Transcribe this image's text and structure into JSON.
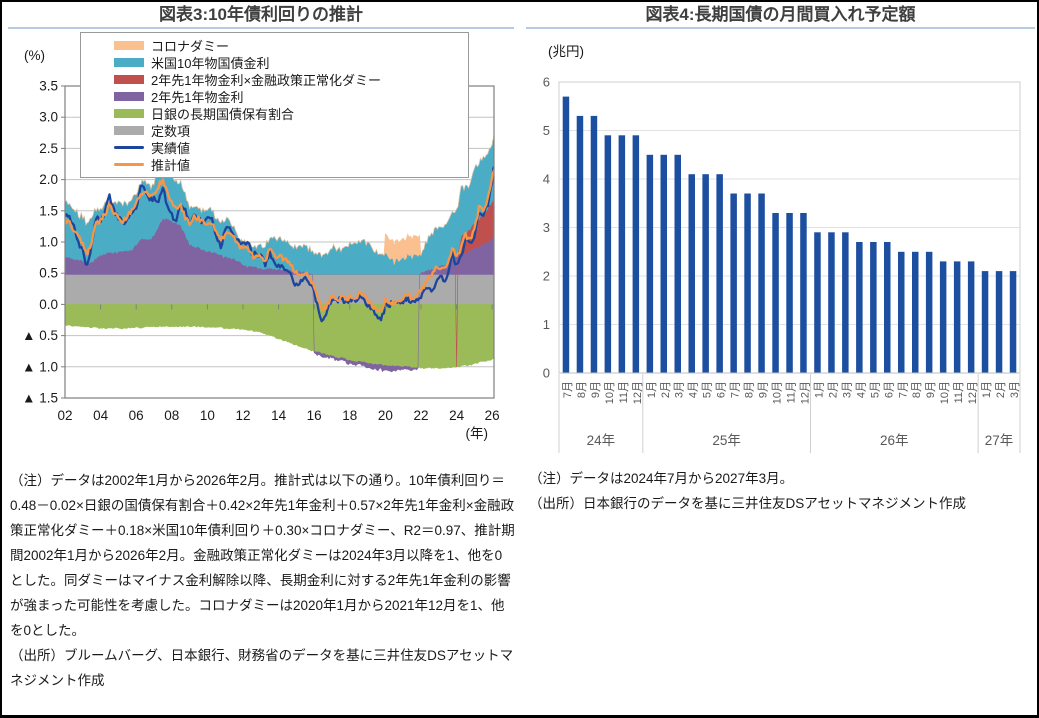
{
  "left": {
    "note": "（注）データは2002年1月から2026年2月。推計式は以下の通り。10年債利回り＝0.48－0.02×日銀の国債保有割合＋0.42×2年先1年金利＋0.57×2年先1年金利×金融政策正常化ダミー＋0.18×米国10年債利回り＋0.30×コロナダミー、R2＝0.97、推計期間2002年1月から2026年2月。金融政策正常化ダミーは2024年3月以降を1、他を0とした。同ダミーはマイナス金利解除以降、長期金利に対する2年先1年金利の影響が強まった可能性を考慮した。コロナダミーは2020年1月から2021年12月を1、他を0とした。",
    "source": "（出所）ブルームバーグ、日本銀行、財務省のデータを基に三井住友DSアセットマネジメント作成"
  },
  "right": {
    "note": "（注）データは2024年7月から2027年3月。",
    "source": "（出所）日本銀行のデータを基に三井住友DSアセットマネジメント作成"
  },
  "chart_data": [
    {
      "type": "area",
      "title": "図表3:10年債利回りの推計",
      "ylabel": "(%)",
      "xlabel": "(年)",
      "ylim": [
        -1.5,
        3.5
      ],
      "ytick_step": 0.5,
      "negative_tick_prefix": "▲ ",
      "x_start": 2002,
      "x_step": 0.25,
      "x_end": 2026.1,
      "xtick_labels": [
        "02",
        "04",
        "06",
        "08",
        "10",
        "12",
        "14",
        "16",
        "18",
        "20",
        "22",
        "24",
        "26"
      ],
      "grid": true,
      "legend_position": "top",
      "stack_order": [
        "constant",
        "boj_holding",
        "fwd_rate",
        "fwd_rate_norm",
        "us10y",
        "corona"
      ],
      "legend_order": [
        "corona",
        "us10y",
        "fwd_rate_norm",
        "fwd_rate",
        "boj_holding",
        "constant",
        "actual",
        "estimate"
      ],
      "series": {
        "constant": {
          "label": "定数項",
          "color": "#ABABAB",
          "value": 0.48
        },
        "boj_holding": {
          "label": "日銀の長期国債保有割合",
          "color": "#9BBB59",
          "values": [
            -0.33,
            -0.34,
            -0.34,
            -0.35,
            -0.36,
            -0.36,
            -0.37,
            -0.37,
            -0.38,
            -0.38,
            -0.38,
            -0.38,
            -0.38,
            -0.38,
            -0.38,
            -0.37,
            -0.37,
            -0.37,
            -0.36,
            -0.36,
            -0.36,
            -0.35,
            -0.35,
            -0.35,
            -0.35,
            -0.35,
            -0.35,
            -0.35,
            -0.35,
            -0.35,
            -0.35,
            -0.36,
            -0.36,
            -0.36,
            -0.37,
            -0.37,
            -0.38,
            -0.38,
            -0.39,
            -0.39,
            -0.4,
            -0.41,
            -0.42,
            -0.43,
            -0.45,
            -0.47,
            -0.5,
            -0.52,
            -0.55,
            -0.58,
            -0.6,
            -0.63,
            -0.65,
            -0.68,
            -0.7,
            -0.73,
            -0.75,
            -0.77,
            -0.79,
            -0.81,
            -0.83,
            -0.85,
            -0.86,
            -0.88,
            -0.9,
            -0.91,
            -0.92,
            -0.93,
            -0.95,
            -0.95,
            -0.96,
            -0.97,
            -0.98,
            -0.98,
            -0.99,
            -0.99,
            -1.0,
            -1.0,
            -1.01,
            -1.01,
            -1.02,
            -1.02,
            -1.02,
            -1.02,
            -1.02,
            -1.02,
            -1.01,
            -1.01,
            -1.0,
            -0.99,
            -0.98,
            -0.97,
            -0.95,
            -0.93,
            -0.91,
            -0.9,
            -0.88,
            -0.87
          ]
        },
        "fwd_rate": {
          "label": "2年先1年物金利",
          "color": "#8064A2",
          "values": [
            0.27,
            0.26,
            0.25,
            0.24,
            0.22,
            0.18,
            0.2,
            0.26,
            0.3,
            0.33,
            0.36,
            0.35,
            0.36,
            0.37,
            0.38,
            0.4,
            0.48,
            0.55,
            0.58,
            0.56,
            0.62,
            0.78,
            0.9,
            0.88,
            0.86,
            0.82,
            0.78,
            0.65,
            0.48,
            0.45,
            0.43,
            0.4,
            0.37,
            0.36,
            0.33,
            0.3,
            0.28,
            0.27,
            0.25,
            0.22,
            0.15,
            0.13,
            0.12,
            0.11,
            0.1,
            0.09,
            0.09,
            0.08,
            0.08,
            0.07,
            0.07,
            0.06,
            0.06,
            0.05,
            0.04,
            0.02,
            -0.02,
            -0.04,
            -0.05,
            -0.04,
            -0.04,
            -0.04,
            -0.04,
            -0.04,
            -0.05,
            -0.05,
            -0.05,
            -0.06,
            -0.06,
            -0.07,
            -0.08,
            -0.08,
            -0.08,
            -0.07,
            -0.07,
            -0.06,
            -0.05,
            -0.04,
            -0.04,
            -0.03,
            0.04,
            0.06,
            0.08,
            0.1,
            0.14,
            0.16,
            0.18,
            0.24,
            0.3,
            0.33,
            0.35,
            0.37,
            0.42,
            0.45,
            0.48,
            0.52,
            0.58,
            0.6
          ]
        },
        "fwd_rate_norm": {
          "label": "2年先1年物金利×金融政策正常化ダミー",
          "color": "#C0504D",
          "from": 2024.25,
          "values_from": [
            0.28,
            0.32,
            0.35,
            0.4,
            0.44,
            0.48,
            0.54,
            0.6,
            0.62
          ]
        },
        "us10y": {
          "label": "米国10年物国債金利",
          "color": "#4BACC6",
          "values": [
            0.87,
            0.88,
            0.8,
            0.72,
            0.7,
            0.62,
            0.72,
            0.78,
            0.75,
            0.8,
            0.82,
            0.78,
            0.76,
            0.74,
            0.76,
            0.8,
            0.82,
            0.9,
            0.9,
            0.84,
            0.85,
            0.85,
            0.88,
            0.8,
            0.7,
            0.68,
            0.7,
            0.65,
            0.55,
            0.6,
            0.64,
            0.62,
            0.66,
            0.68,
            0.55,
            0.48,
            0.6,
            0.62,
            0.52,
            0.38,
            0.36,
            0.38,
            0.3,
            0.31,
            0.35,
            0.37,
            0.46,
            0.48,
            0.52,
            0.48,
            0.45,
            0.42,
            0.36,
            0.38,
            0.4,
            0.38,
            0.36,
            0.32,
            0.28,
            0.32,
            0.44,
            0.42,
            0.4,
            0.42,
            0.48,
            0.52,
            0.52,
            0.55,
            0.48,
            0.45,
            0.36,
            0.32,
            0.3,
            0.25,
            0.2,
            0.22,
            0.25,
            0.3,
            0.28,
            0.3,
            0.32,
            0.44,
            0.52,
            0.64,
            0.62,
            0.6,
            0.68,
            0.8,
            0.72,
            0.76,
            0.72,
            0.7,
            0.85,
            0.88,
            0.9,
            0.92,
            0.95,
            1.05
          ]
        },
        "corona": {
          "label": "コロナダミー",
          "color": "#FAC090",
          "amount": 0.3,
          "from": 2020.0,
          "to": 2021.99,
          "step": true
        }
      },
      "lines": {
        "actual": {
          "label": "実績値",
          "color": "#1E459E",
          "width": 2.3,
          "values": [
            1.45,
            1.4,
            1.25,
            1.0,
            0.85,
            0.6,
            0.95,
            1.4,
            1.3,
            1.5,
            1.75,
            1.5,
            1.4,
            1.3,
            1.35,
            1.5,
            1.55,
            1.9,
            1.85,
            1.7,
            1.7,
            1.65,
            1.85,
            1.6,
            1.45,
            1.3,
            1.6,
            1.5,
            1.25,
            1.45,
            1.35,
            1.3,
            1.35,
            1.35,
            1.1,
            0.9,
            1.2,
            1.25,
            1.1,
            1.0,
            0.95,
            1.0,
            0.8,
            0.8,
            0.8,
            0.6,
            0.85,
            0.65,
            0.65,
            0.6,
            0.55,
            0.45,
            0.3,
            0.35,
            0.45,
            0.3,
            0.2,
            -0.1,
            -0.28,
            -0.05,
            0.05,
            0.05,
            0.08,
            0.05,
            0.08,
            0.05,
            0.1,
            0.12,
            0.0,
            -0.05,
            -0.15,
            -0.25,
            -0.05,
            0.0,
            0.03,
            0.03,
            0.05,
            0.1,
            0.05,
            0.08,
            0.15,
            0.22,
            0.23,
            0.25,
            0.45,
            0.4,
            0.45,
            0.85,
            0.6,
            0.75,
            1.05,
            0.95,
            1.1,
            1.5,
            1.45,
            1.6,
            2.0,
            2.2
          ]
        },
        "estimate": {
          "label": "推計値",
          "color": "#F79646",
          "width": 2.3,
          "values": [
            1.35,
            1.3,
            1.2,
            1.1,
            0.95,
            0.8,
            1.0,
            1.3,
            1.35,
            1.45,
            1.6,
            1.45,
            1.38,
            1.35,
            1.4,
            1.52,
            1.6,
            1.8,
            1.8,
            1.72,
            1.75,
            1.9,
            2.0,
            1.8,
            1.65,
            1.55,
            1.6,
            1.4,
            1.3,
            1.4,
            1.38,
            1.32,
            1.3,
            1.32,
            1.15,
            1.0,
            1.15,
            1.18,
            1.05,
            0.95,
            0.9,
            0.92,
            0.78,
            0.78,
            0.75,
            0.7,
            0.88,
            0.78,
            0.78,
            0.72,
            0.68,
            0.6,
            0.5,
            0.48,
            0.5,
            0.42,
            0.3,
            0.05,
            -0.1,
            0.02,
            0.12,
            0.1,
            0.1,
            0.08,
            0.12,
            0.12,
            0.15,
            0.15,
            0.05,
            0.0,
            -0.08,
            -0.12,
            0.08,
            0.05,
            0.02,
            0.05,
            0.1,
            0.15,
            0.12,
            0.15,
            0.22,
            0.35,
            0.42,
            0.55,
            0.6,
            0.58,
            0.65,
            0.9,
            0.78,
            0.9,
            1.1,
            1.05,
            1.2,
            1.55,
            1.5,
            1.7,
            2.05,
            2.15
          ]
        }
      },
      "note": "（注）データは2002年1月から2026年2月。推計式は以下の通り。10年債利回り＝0.48－0.02×日銀の国債保有割合＋0.42×2年先1年金利＋0.57×2年先1年金利×金融政策正常化ダミー＋0.18×米国10年債利回り＋0.30×コロナダミー、R2＝0.97、推計期間2002年1月から2026年2月。金融政策正常化ダミーは2024年3月以降を1、他を0とした。同ダミーはマイナス金利解除以降、長期金利に対する2年先1年金利の影響が強まった可能性を考慮した。コロナダミーは2020年1月から2021年12月を1、他を0とした。",
      "source": "（出所）ブルームバーグ、日本銀行、財務省のデータを基に三井住友DSアセットマネジメント作成"
    },
    {
      "type": "bar",
      "title": "図表4:長期国債の月間買入れ予定額",
      "ylabel": "(兆円)",
      "ylim": [
        0,
        6
      ],
      "ytick_step": 1,
      "grid": true,
      "bar_color": "#1D4FA0",
      "year_groups": [
        {
          "label": "24年",
          "months": [
            "7月",
            "8月",
            "9月",
            "10月",
            "11月",
            "12月"
          ]
        },
        {
          "label": "25年",
          "months": [
            "1月",
            "2月",
            "3月",
            "4月",
            "5月",
            "6月",
            "7月",
            "8月",
            "9月",
            "10月",
            "11月",
            "12月"
          ]
        },
        {
          "label": "26年",
          "months": [
            "1月",
            "2月",
            "3月",
            "4月",
            "5月",
            "6月",
            "7月",
            "8月",
            "9月",
            "10月",
            "11月",
            "12月"
          ]
        },
        {
          "label": "27年",
          "months": [
            "1月",
            "2月",
            "3月"
          ]
        }
      ],
      "values": [
        5.7,
        5.3,
        5.3,
        4.9,
        4.9,
        4.9,
        4.5,
        4.5,
        4.5,
        4.1,
        4.1,
        4.1,
        3.7,
        3.7,
        3.7,
        3.3,
        3.3,
        3.3,
        2.9,
        2.9,
        2.9,
        2.7,
        2.7,
        2.7,
        2.5,
        2.5,
        2.5,
        2.3,
        2.3,
        2.3,
        2.1,
        2.1,
        2.1
      ],
      "note": "（注）データは2024年7月から2027年3月。",
      "source": "（出所）日本銀行のデータを基に三井住友DSアセットマネジメント作成"
    }
  ]
}
